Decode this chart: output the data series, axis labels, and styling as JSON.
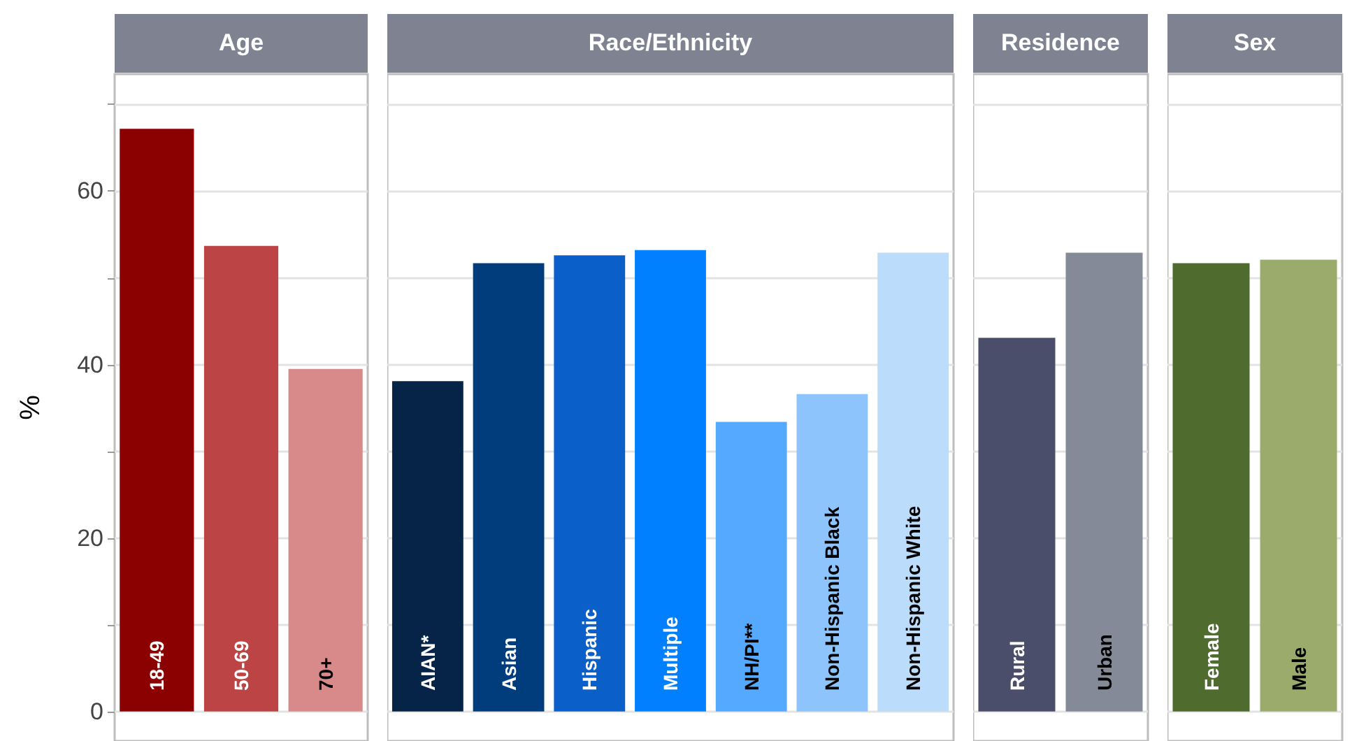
{
  "chart_data": [
    {
      "type": "bar",
      "title": "Age",
      "ylabel": "%",
      "categories": [
        "18-49",
        "50-69",
        "70+"
      ],
      "values": [
        67.2,
        53.7,
        39.5
      ],
      "colors": [
        "#8b0000",
        "#bc4444",
        "#d88a8a"
      ],
      "ylim": [
        -3.4,
        73.5
      ],
      "yticks": [
        0,
        {
          "value": 10,
          "label": null
        },
        20,
        {
          "value": 30,
          "label": null
        },
        40,
        {
          "value": 50,
          "label": null
        },
        60,
        {
          "value": 70,
          "label": null
        }
      ],
      "grid": "y"
    },
    {
      "type": "bar",
      "title": "Race/Ethnicity",
      "categories": [
        "AIAN*",
        "Asian",
        "Hispanic",
        "Multiple",
        "NH/PI**",
        "Non-Hispanic Black",
        "Non-Hispanic White"
      ],
      "values": [
        38.1,
        51.7,
        52.6,
        53.2,
        33.4,
        36.6,
        52.9
      ],
      "colors": [
        "#062447",
        "#013d7d",
        "#0a60c8",
        "#0080ff",
        "#55aaff",
        "#8cc4fb",
        "#bcdcfb"
      ],
      "ylim": [
        -3.4,
        73.5
      ],
      "yticks": [
        0,
        {
          "value": 10,
          "label": null
        },
        20,
        {
          "value": 30,
          "label": null
        },
        40,
        {
          "value": 50,
          "label": null
        },
        60,
        {
          "value": 70,
          "label": null
        }
      ],
      "grid": "y",
      "tick_labels": "x"
    },
    {
      "type": "bar",
      "title": "Residence",
      "categories": [
        "Rural",
        "Urban"
      ],
      "values": [
        43.1,
        52.9
      ],
      "colors": [
        "#4a4e6b",
        "#848a98"
      ],
      "ylim": [
        -3.4,
        73.5
      ],
      "yticks": [
        0,
        {
          "value": 10,
          "label": null
        },
        20,
        {
          "value": 30,
          "label": null
        },
        40,
        {
          "value": 50,
          "label": null
        },
        60,
        {
          "value": 70,
          "label": null
        }
      ],
      "grid": "y",
      "tick_labels": "x"
    },
    {
      "type": "bar",
      "title": "Sex",
      "categories": [
        "Female",
        "Male"
      ],
      "values": [
        51.7,
        52.1
      ],
      "colors": [
        "#4f6b2e",
        "#9aab6c"
      ],
      "ylim": [
        -3.4,
        73.5
      ],
      "yticks": [
        0,
        {
          "value": 10,
          "label": null
        },
        20,
        {
          "value": 30,
          "label": null
        },
        40,
        {
          "value": 50,
          "label": null
        },
        60,
        {
          "value": 70,
          "label": null
        }
      ],
      "grid": "y",
      "tick_labels": "x"
    }
  ]
}
